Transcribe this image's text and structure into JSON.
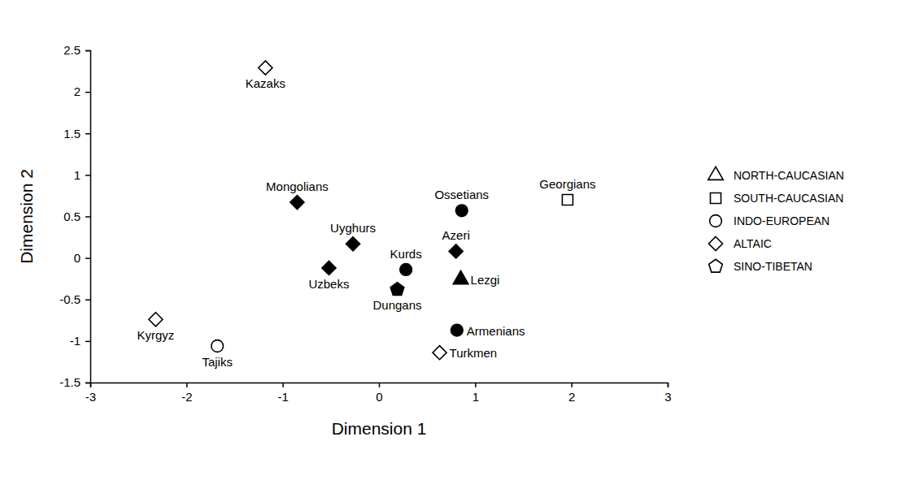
{
  "chart_data": {
    "type": "scatter",
    "x_label": "Dimension 1",
    "y_label": "Dimension 2",
    "xlim": [
      -3,
      3
    ],
    "xticks": [
      -3,
      -2,
      -1,
      0,
      1,
      2,
      3
    ],
    "ylim": [
      -1.5,
      2.5
    ],
    "yticks": [
      -1.5,
      -1,
      -0.5,
      0,
      0.5,
      1,
      1.5,
      2,
      2.5
    ],
    "grid": false,
    "legend": "right",
    "series": [
      {
        "name": "NORTH-CAUCASIAN",
        "marker": "triangle",
        "labels": [
          "Lezgi"
        ],
        "x": [
          0.85
        ],
        "values": [
          -0.26
        ],
        "colors": [
          "#000000"
        ]
      },
      {
        "name": "SOUTH-CAUCASIAN",
        "marker": "square",
        "labels": [
          "Georgians"
        ],
        "x": [
          1.96
        ],
        "values": [
          0.7
        ],
        "colors": [
          "#ffffff"
        ]
      },
      {
        "name": "INDO-EUROPEAN",
        "marker": "circle",
        "labels": [
          "Ossetians",
          "Kurds",
          "Armenians",
          "Tajiks"
        ],
        "x": [
          0.86,
          0.28,
          0.81,
          -1.68
        ],
        "values": [
          0.57,
          -0.14,
          -0.87,
          -1.06
        ],
        "colors": [
          "#000000",
          "#000000",
          "#000000",
          "#ffffff"
        ]
      },
      {
        "name": "ALTAIC",
        "marker": "diamond",
        "labels": [
          "Kazaks",
          "Mongolians",
          "Uyghurs",
          "Uzbeks",
          "Azeri",
          "Kyrgyz",
          "Turkmen"
        ],
        "x": [
          -1.18,
          -0.85,
          -0.27,
          -0.52,
          0.8,
          -2.32,
          0.63
        ],
        "values": [
          2.29,
          0.67,
          0.17,
          -0.12,
          0.08,
          -0.74,
          -1.14
        ],
        "colors": [
          "#ffffff",
          "#000000",
          "#000000",
          "#000000",
          "#000000",
          "#ffffff",
          "#ffffff"
        ]
      },
      {
        "name": "SINO-TIBETAN",
        "marker": "pentagon",
        "labels": [
          "Dungans"
        ],
        "x": [
          0.19
        ],
        "values": [
          -0.38
        ],
        "colors": [
          "#000000"
        ]
      }
    ]
  }
}
